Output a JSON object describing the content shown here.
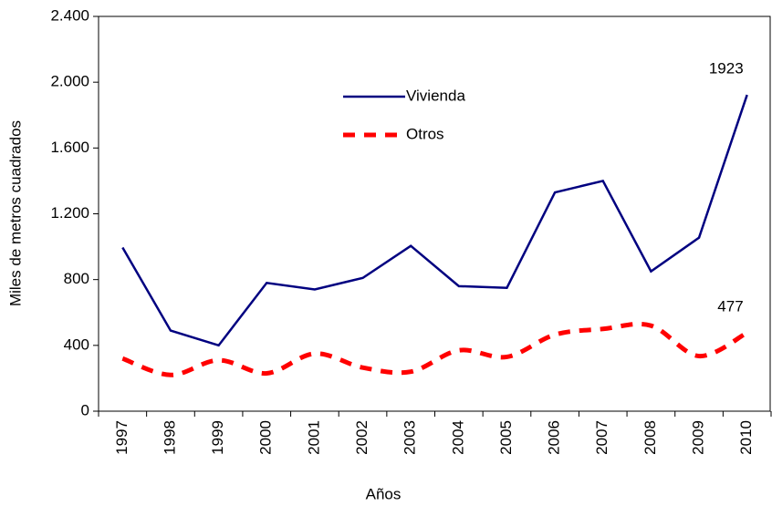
{
  "chart_data": {
    "type": "line",
    "xlabel": "Años",
    "ylabel": "Miles de metros cuadrados",
    "categories": [
      "1997",
      "1998",
      "1999",
      "2000",
      "2001",
      "2002",
      "2003",
      "2004",
      "2005",
      "2006",
      "2007",
      "2008",
      "2009",
      "2010"
    ],
    "series": [
      {
        "name": "Vivienda",
        "color": "#000080",
        "style": "solid",
        "values": [
          995,
          490,
          400,
          780,
          740,
          810,
          1005,
          760,
          750,
          1330,
          1400,
          850,
          1055,
          1923
        ]
      },
      {
        "name": "Otros",
        "color": "#ff0000",
        "style": "dashed",
        "values": [
          320,
          220,
          310,
          230,
          350,
          265,
          240,
          370,
          330,
          465,
          500,
          520,
          335,
          477
        ]
      }
    ],
    "ylim": [
      0,
      2400
    ],
    "yticks": [
      0,
      400,
      800,
      {
        "value": 1200,
        "label": "1.200"
      },
      {
        "value": 1600,
        "label": "1.600"
      },
      {
        "value": 2000,
        "label": "2.000"
      },
      {
        "value": 2400,
        "label": "2.400"
      }
    ],
    "grid": false,
    "legend": "upper-center"
  }
}
